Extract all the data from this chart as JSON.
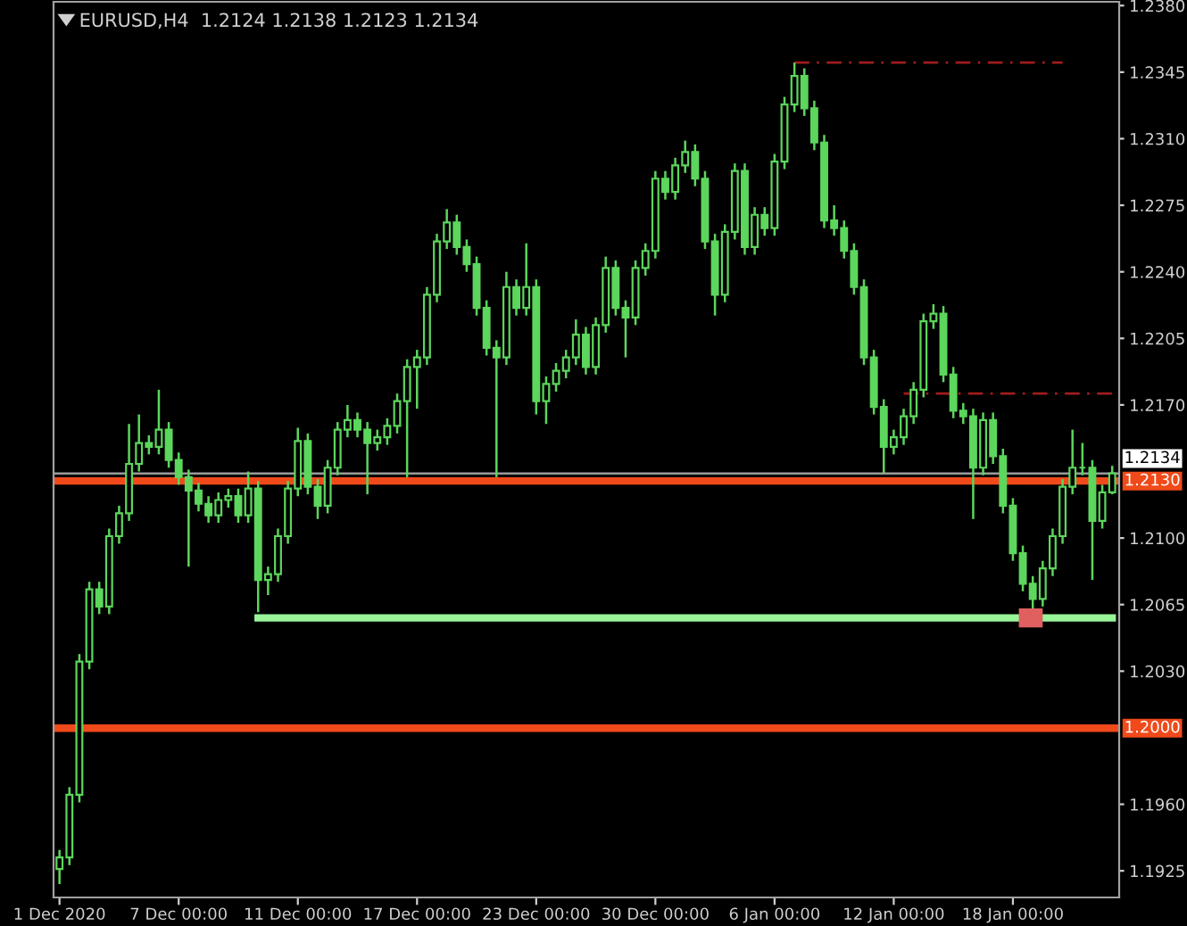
{
  "chart_data": {
    "type": "candlestick",
    "title": "EURUSD,H4  1.2124 1.2138 1.2123 1.2134",
    "color": "#5cd65c",
    "grid": false,
    "legend": false,
    "categories": [
      "1 Dec 2020",
      null,
      null,
      null,
      null,
      null,
      null,
      null,
      null,
      null,
      null,
      null,
      "7 Dec 00:00",
      null,
      null,
      null,
      null,
      null,
      null,
      null,
      null,
      null,
      null,
      null,
      "11 Dec 00:00",
      null,
      null,
      null,
      null,
      null,
      null,
      null,
      null,
      null,
      null,
      null,
      "17 Dec 00:00",
      null,
      null,
      null,
      null,
      null,
      null,
      null,
      null,
      null,
      null,
      null,
      "23 Dec 00:00",
      null,
      null,
      null,
      null,
      null,
      null,
      null,
      null,
      null,
      null,
      null,
      "30 Dec 00:00",
      null,
      null,
      null,
      null,
      null,
      null,
      null,
      null,
      null,
      null,
      null,
      "6 Jan 00:00",
      null,
      null,
      null,
      null,
      null,
      null,
      null,
      null,
      null,
      null,
      null,
      "12 Jan 00:00",
      null,
      null,
      null,
      null,
      null,
      null,
      null,
      null,
      null,
      null,
      null,
      "18 Jan 00:00",
      null,
      null,
      null,
      null,
      null,
      null,
      null,
      null,
      null,
      null
    ],
    "ohlc": [
      [
        1.1926,
        1.1936,
        1.1918,
        1.1932
      ],
      [
        1.1932,
        1.1969,
        1.1928,
        1.1965
      ],
      [
        1.1965,
        1.2039,
        1.1961,
        1.2035
      ],
      [
        1.2035,
        1.2077,
        1.2031,
        1.2073
      ],
      [
        1.2073,
        1.2077,
        1.206,
        1.2064
      ],
      [
        1.2064,
        1.2105,
        1.206,
        1.2101
      ],
      [
        1.2101,
        1.2117,
        1.2097,
        1.2113
      ],
      [
        1.2113,
        1.216,
        1.2109,
        1.2139
      ],
      [
        1.2139,
        1.2165,
        1.2135,
        1.215
      ],
      [
        1.215,
        1.2154,
        1.2144,
        1.2148
      ],
      [
        1.2148,
        1.2178,
        1.2144,
        1.2157
      ],
      [
        1.2157,
        1.2161,
        1.2137,
        1.2141
      ],
      [
        1.2141,
        1.2145,
        1.2128,
        1.2132
      ],
      [
        1.2132,
        1.2136,
        1.2085,
        1.2125
      ],
      [
        1.2125,
        1.2129,
        1.2114,
        1.2118
      ],
      [
        1.2118,
        1.2122,
        1.2108,
        1.2112
      ],
      [
        1.2112,
        1.2124,
        1.2108,
        1.212
      ],
      [
        1.212,
        1.2126,
        1.2116,
        1.2122
      ],
      [
        1.2122,
        1.2126,
        1.2108,
        1.2112
      ],
      [
        1.2112,
        1.2135,
        1.2108,
        1.2126
      ],
      [
        1.2126,
        1.213,
        1.2061,
        1.2078
      ],
      [
        1.2078,
        1.2085,
        1.207,
        1.2081
      ],
      [
        1.2081,
        1.2105,
        1.2077,
        1.2101
      ],
      [
        1.2101,
        1.213,
        1.2097,
        1.2126
      ],
      [
        1.2126,
        1.2158,
        1.2122,
        1.2151
      ],
      [
        1.2151,
        1.2155,
        1.2123,
        1.2127
      ],
      [
        1.2127,
        1.2131,
        1.211,
        1.2117
      ],
      [
        1.2117,
        1.2141,
        1.2113,
        1.2137
      ],
      [
        1.2137,
        1.2161,
        1.2133,
        1.2157
      ],
      [
        1.2157,
        1.217,
        1.2153,
        1.2162
      ],
      [
        1.2162,
        1.2166,
        1.2153,
        1.2157
      ],
      [
        1.2157,
        1.2161,
        1.2123,
        1.215
      ],
      [
        1.215,
        1.2157,
        1.2146,
        1.2153
      ],
      [
        1.2153,
        1.2163,
        1.2149,
        1.2159
      ],
      [
        1.2159,
        1.2176,
        1.2155,
        1.2172
      ],
      [
        1.2172,
        1.2194,
        1.2132,
        1.219
      ],
      [
        1.219,
        1.2199,
        1.2168,
        1.2195
      ],
      [
        1.2195,
        1.2232,
        1.2191,
        1.2228
      ],
      [
        1.2228,
        1.226,
        1.2224,
        1.2256
      ],
      [
        1.2256,
        1.2273,
        1.2252,
        1.2266
      ],
      [
        1.2266,
        1.227,
        1.2249,
        1.2253
      ],
      [
        1.2253,
        1.2257,
        1.224,
        1.2244
      ],
      [
        1.2244,
        1.2248,
        1.2217,
        1.2221
      ],
      [
        1.2221,
        1.2225,
        1.2196,
        1.22
      ],
      [
        1.22,
        1.2204,
        1.2132,
        1.2195
      ],
      [
        1.2195,
        1.224,
        1.2191,
        1.2232
      ],
      [
        1.2232,
        1.2236,
        1.2217,
        1.2221
      ],
      [
        1.2221,
        1.2255,
        1.2217,
        1.2232
      ],
      [
        1.2232,
        1.2236,
        1.2165,
        1.2172
      ],
      [
        1.2172,
        1.2185,
        1.216,
        1.2181
      ],
      [
        1.2181,
        1.2192,
        1.2177,
        1.2188
      ],
      [
        1.2188,
        1.2199,
        1.2184,
        1.2195
      ],
      [
        1.2195,
        1.2215,
        1.2191,
        1.2207
      ],
      [
        1.2207,
        1.2211,
        1.2186,
        1.219
      ],
      [
        1.219,
        1.2216,
        1.2186,
        1.2212
      ],
      [
        1.2212,
        1.2248,
        1.2208,
        1.2242
      ],
      [
        1.2242,
        1.2246,
        1.2217,
        1.2221
      ],
      [
        1.2221,
        1.2225,
        1.2195,
        1.2216
      ],
      [
        1.2216,
        1.2246,
        1.2212,
        1.2242
      ],
      [
        1.2242,
        1.2255,
        1.2238,
        1.2251
      ],
      [
        1.2251,
        1.2293,
        1.2247,
        1.2289
      ],
      [
        1.2289,
        1.2293,
        1.2278,
        1.2282
      ],
      [
        1.2282,
        1.23,
        1.2278,
        1.2296
      ],
      [
        1.2296,
        1.2309,
        1.2292,
        1.2303
      ],
      [
        1.2303,
        1.2307,
        1.2285,
        1.2289
      ],
      [
        1.2289,
        1.2293,
        1.2252,
        1.2256
      ],
      [
        1.2256,
        1.226,
        1.2217,
        1.2228
      ],
      [
        1.2228,
        1.2265,
        1.2224,
        1.2261
      ],
      [
        1.2261,
        1.2297,
        1.2257,
        1.2293
      ],
      [
        1.2293,
        1.2297,
        1.2249,
        1.2253
      ],
      [
        1.2253,
        1.2274,
        1.2249,
        1.227
      ],
      [
        1.227,
        1.2274,
        1.2259,
        1.2263
      ],
      [
        1.2263,
        1.2302,
        1.2259,
        1.2298
      ],
      [
        1.2298,
        1.2332,
        1.2294,
        1.2328
      ],
      [
        1.2328,
        1.235,
        1.2324,
        1.2343
      ],
      [
        1.2343,
        1.2347,
        1.2322,
        1.2326
      ],
      [
        1.2326,
        1.233,
        1.2304,
        1.2308
      ],
      [
        1.2308,
        1.2312,
        1.2263,
        1.2267
      ],
      [
        1.2267,
        1.2275,
        1.2259,
        1.2263
      ],
      [
        1.2263,
        1.2267,
        1.2247,
        1.2251
      ],
      [
        1.2251,
        1.2255,
        1.2228,
        1.2232
      ],
      [
        1.2232,
        1.2236,
        1.2191,
        1.2195
      ],
      [
        1.2195,
        1.2199,
        1.2165,
        1.2169
      ],
      [
        1.2169,
        1.2173,
        1.2134,
        1.2148
      ],
      [
        1.2148,
        1.2157,
        1.2144,
        1.2153
      ],
      [
        1.2153,
        1.2168,
        1.2149,
        1.2164
      ],
      [
        1.2164,
        1.2182,
        1.216,
        1.2178
      ],
      [
        1.2178,
        1.2218,
        1.2174,
        1.2214
      ],
      [
        1.2214,
        1.2223,
        1.221,
        1.2218
      ],
      [
        1.2218,
        1.2222,
        1.2182,
        1.2186
      ],
      [
        1.2186,
        1.219,
        1.2163,
        1.2167
      ],
      [
        1.2167,
        1.2171,
        1.216,
        1.2164
      ],
      [
        1.2164,
        1.2168,
        1.211,
        1.2137
      ],
      [
        1.2137,
        1.2166,
        1.2133,
        1.2162
      ],
      [
        1.2162,
        1.2166,
        1.2139,
        1.2143
      ],
      [
        1.2143,
        1.2147,
        1.2113,
        1.2117
      ],
      [
        1.2117,
        1.2121,
        1.2088,
        1.2092
      ],
      [
        1.2092,
        1.2096,
        1.2072,
        1.2076
      ],
      [
        1.2076,
        1.208,
        1.2061,
        1.2068
      ],
      [
        1.2068,
        1.2088,
        1.2064,
        1.2084
      ],
      [
        1.2084,
        1.2105,
        1.208,
        1.2101
      ],
      [
        1.2101,
        1.2131,
        1.2097,
        1.2127
      ],
      [
        1.2127,
        1.2157,
        1.2123,
        1.2137
      ],
      [
        1.2137,
        1.215,
        1.2133,
        1.2137
      ],
      [
        1.2137,
        1.2141,
        1.2078,
        1.2109
      ],
      [
        1.2109,
        1.2128,
        1.2105,
        1.2124
      ],
      [
        1.2124,
        1.2138,
        1.2123,
        1.2134
      ]
    ],
    "series": [
      {
        "type": "line",
        "color": "#98f598",
        "line_style": "solid",
        "values": [
          null,
          null,
          null,
          null,
          null,
          null,
          null,
          null,
          null,
          null,
          null,
          null,
          null,
          null,
          null,
          null,
          null,
          null,
          null,
          null,
          1.2058,
          1.2058,
          1.2058,
          1.2058,
          1.2058,
          1.2058,
          1.2058,
          1.2058,
          1.2058,
          1.2058,
          1.2058,
          1.2058,
          1.2058,
          1.2058,
          1.2058,
          1.2058,
          1.2058,
          1.2058,
          1.2058,
          1.2058,
          1.2058,
          1.2058,
          1.2058,
          1.2058,
          1.2058,
          1.2058,
          1.2058,
          1.2058,
          1.2058,
          1.2058,
          1.2058,
          1.2058,
          1.2058,
          1.2058,
          1.2058,
          1.2058,
          1.2058,
          1.2058,
          1.2058,
          1.2058,
          1.2058,
          1.2058,
          1.2058,
          1.2058,
          1.2058,
          1.2058,
          1.2058,
          1.2058,
          1.2058,
          1.2058,
          1.2058,
          1.2058,
          1.2058,
          1.2058,
          1.2058,
          1.2058,
          1.2058,
          1.2058,
          1.2058,
          1.2058,
          1.2058,
          1.2058,
          1.2058,
          1.2058,
          1.2058,
          1.2058,
          1.2058,
          1.2058,
          1.2058,
          1.2058,
          1.2058,
          1.2058,
          1.2058,
          1.2058,
          1.2058,
          1.2058,
          1.2058,
          1.2058,
          1.2058,
          1.2058,
          1.2058,
          1.2058,
          1.2058,
          1.2058,
          1.2058,
          1.2058,
          1.2058
        ]
      },
      {
        "type": "line",
        "color": "#a01c1c",
        "line_style": "dashed",
        "values": [
          null,
          null,
          null,
          null,
          null,
          null,
          null,
          null,
          null,
          null,
          null,
          null,
          null,
          null,
          null,
          null,
          null,
          null,
          null,
          null,
          null,
          null,
          null,
          null,
          null,
          null,
          null,
          null,
          null,
          null,
          null,
          null,
          null,
          null,
          null,
          null,
          null,
          null,
          null,
          null,
          null,
          null,
          null,
          null,
          null,
          null,
          null,
          null,
          null,
          null,
          null,
          null,
          null,
          null,
          null,
          null,
          null,
          null,
          null,
          null,
          null,
          null,
          null,
          null,
          null,
          null,
          null,
          null,
          null,
          null,
          null,
          null,
          null,
          null,
          1.235,
          1.235,
          1.235,
          1.235,
          1.235,
          1.235,
          1.235,
          1.235,
          1.235,
          1.235,
          1.235,
          1.235,
          1.235,
          1.235,
          1.235,
          1.235,
          1.235,
          1.235,
          1.235,
          1.235,
          1.235,
          1.235,
          1.235,
          1.235,
          1.235,
          1.235,
          1.235,
          1.235,
          null,
          null,
          null,
          null,
          null
        ]
      },
      {
        "type": "line",
        "color": "#a01c1c",
        "line_style": "dashed",
        "values": [
          null,
          null,
          null,
          null,
          null,
          null,
          null,
          null,
          null,
          null,
          null,
          null,
          null,
          null,
          null,
          null,
          null,
          null,
          null,
          null,
          null,
          null,
          null,
          null,
          null,
          null,
          null,
          null,
          null,
          null,
          null,
          null,
          null,
          null,
          null,
          null,
          null,
          null,
          null,
          null,
          null,
          null,
          null,
          null,
          null,
          null,
          null,
          null,
          null,
          null,
          null,
          null,
          null,
          null,
          null,
          null,
          null,
          null,
          null,
          null,
          null,
          null,
          null,
          null,
          null,
          null,
          null,
          null,
          null,
          null,
          null,
          null,
          null,
          null,
          null,
          null,
          null,
          null,
          null,
          null,
          null,
          null,
          null,
          null,
          null,
          1.2176,
          1.2176,
          1.2176,
          1.2176,
          1.2176,
          1.2176,
          1.2176,
          1.2176,
          1.2176,
          1.2176,
          1.2176,
          1.2176,
          1.2176,
          1.2176,
          1.2176,
          1.2176,
          1.2176,
          1.2176,
          1.2176,
          1.2176,
          1.2176,
          1.2176
        ]
      }
    ],
    "ylim": [
      1.1911,
      1.2382
    ],
    "yticks": [
      {
        "value": 1.238,
        "label": "1.2380"
      },
      {
        "value": 1.2345,
        "label": "1.2345"
      },
      {
        "value": 1.231,
        "label": "1.2310"
      },
      {
        "value": 1.2275,
        "label": "1.2275"
      },
      {
        "value": 1.224,
        "label": "1.2240"
      },
      {
        "value": 1.2205,
        "label": "1.2205"
      },
      {
        "value": 1.217,
        "label": "1.2170"
      },
      {
        "value": 1.21,
        "label": "1.2100"
      },
      {
        "value": 1.2065,
        "label": "1.2065"
      },
      {
        "value": 1.203,
        "label": "1.2030"
      },
      {
        "value": 1.196,
        "label": "1.1960"
      },
      {
        "value": 1.1925,
        "label": "1.1925"
      }
    ],
    "ref_lines": [
      {
        "axis": "y",
        "value": 1.2134,
        "label": "1.2134",
        "color": "#9a9a9a",
        "line_style": "solid"
      },
      {
        "axis": "y",
        "value": 1.213,
        "label": "1.2130",
        "color": "#f04a1a",
        "line_style": "solid"
      },
      {
        "axis": "y",
        "value": 1.2,
        "label": "1.2000",
        "color": "#f04a1a",
        "line_style": "solid"
      }
    ]
  }
}
